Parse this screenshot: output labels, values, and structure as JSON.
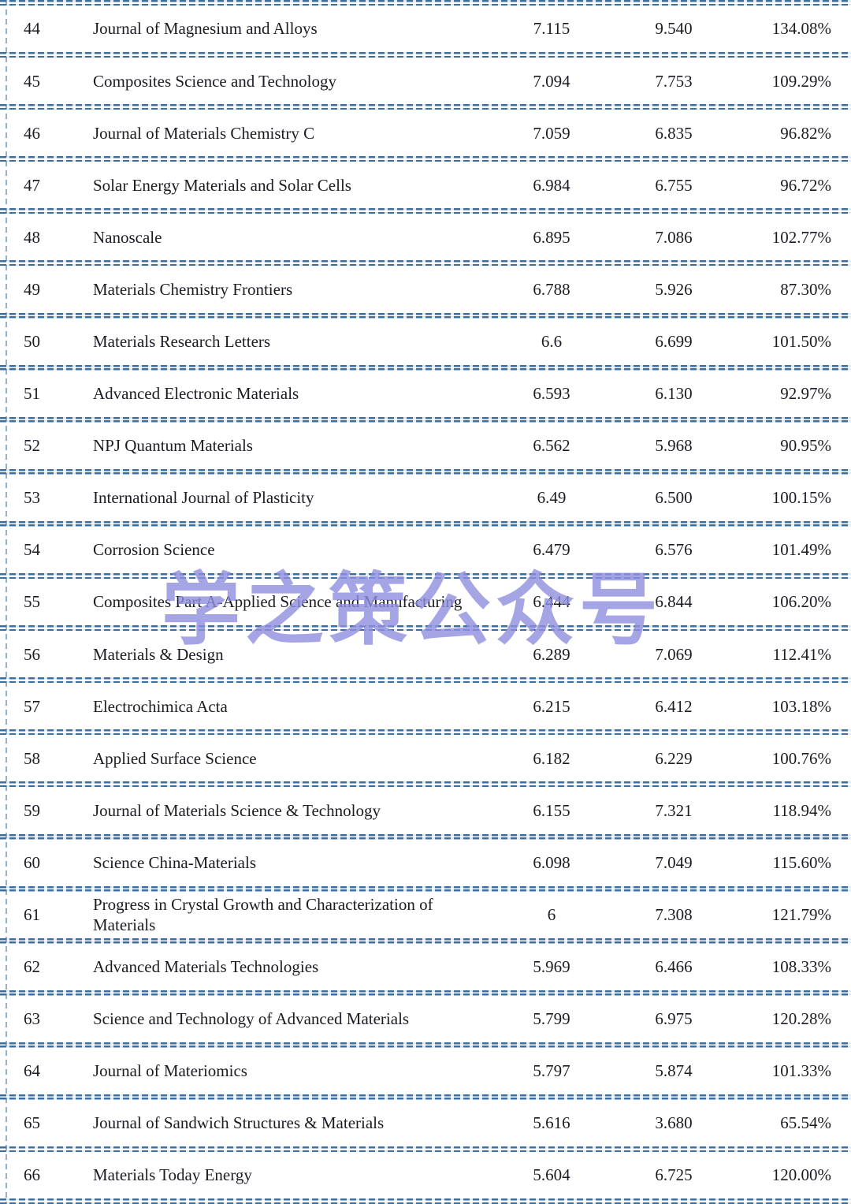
{
  "colors": {
    "separator": "#3c6e9f",
    "text": "#1b1b24",
    "watermark": "#8f8fe0"
  },
  "watermark": {
    "text": "学之策公众号"
  },
  "table": {
    "rows": [
      {
        "rank": "44",
        "name": "Journal of Magnesium and Alloys",
        "value1": "7.115",
        "value2": "9.540",
        "percent": "134.08%"
      },
      {
        "rank": "45",
        "name": "Composites Science and Technology",
        "value1": "7.094",
        "value2": "7.753",
        "percent": "109.29%"
      },
      {
        "rank": "46",
        "name": "Journal of Materials Chemistry C",
        "value1": "7.059",
        "value2": "6.835",
        "percent": "96.82%"
      },
      {
        "rank": "47",
        "name": "Solar Energy Materials and Solar Cells",
        "value1": "6.984",
        "value2": "6.755",
        "percent": "96.72%"
      },
      {
        "rank": "48",
        "name": "Nanoscale",
        "value1": "6.895",
        "value2": "7.086",
        "percent": "102.77%"
      },
      {
        "rank": "49",
        "name": "Materials Chemistry Frontiers",
        "value1": "6.788",
        "value2": "5.926",
        "percent": "87.30%"
      },
      {
        "rank": "50",
        "name": "Materials Research Letters",
        "value1": "6.6",
        "value2": "6.699",
        "percent": "101.50%"
      },
      {
        "rank": "51",
        "name": "Advanced Electronic Materials",
        "value1": "6.593",
        "value2": "6.130",
        "percent": "92.97%"
      },
      {
        "rank": "52",
        "name": "NPJ Quantum Materials",
        "value1": "6.562",
        "value2": "5.968",
        "percent": "90.95%"
      },
      {
        "rank": "53",
        "name": "International Journal of Plasticity",
        "value1": "6.49",
        "value2": "6.500",
        "percent": "100.15%"
      },
      {
        "rank": "54",
        "name": "Corrosion Science",
        "value1": "6.479",
        "value2": "6.576",
        "percent": "101.49%"
      },
      {
        "rank": "55",
        "name": "Composites Part A-Applied Science and Manufacturing",
        "value1": "6.444",
        "value2": "6.844",
        "percent": "106.20%"
      },
      {
        "rank": "56",
        "name": "Materials & Design",
        "value1": "6.289",
        "value2": "7.069",
        "percent": "112.41%"
      },
      {
        "rank": "57",
        "name": "Electrochimica Acta",
        "value1": "6.215",
        "value2": "6.412",
        "percent": "103.18%"
      },
      {
        "rank": "58",
        "name": "Applied Surface Science",
        "value1": "6.182",
        "value2": "6.229",
        "percent": "100.76%"
      },
      {
        "rank": "59",
        "name": "Journal of Materials Science & Technology",
        "value1": "6.155",
        "value2": "7.321",
        "percent": "118.94%"
      },
      {
        "rank": "60",
        "name": "Science China-Materials",
        "value1": "6.098",
        "value2": "7.049",
        "percent": "115.60%"
      },
      {
        "rank": "61",
        "name": "Progress in Crystal Growth and Characterization of Materials",
        "value1": "6",
        "value2": "7.308",
        "percent": "121.79%"
      },
      {
        "rank": "62",
        "name": "Advanced Materials Technologies",
        "value1": "5.969",
        "value2": "6.466",
        "percent": "108.33%"
      },
      {
        "rank": "63",
        "name": "Science and Technology of Advanced Materials",
        "value1": "5.799",
        "value2": "6.975",
        "percent": "120.28%"
      },
      {
        "rank": "64",
        "name": "Journal of Materiomics",
        "value1": "5.797",
        "value2": "5.874",
        "percent": "101.33%"
      },
      {
        "rank": "65",
        "name": "Journal of Sandwich Structures & Materials",
        "value1": "5.616",
        "value2": "3.680",
        "percent": "65.54%"
      },
      {
        "rank": "66",
        "name": "Materials Today Energy",
        "value1": "5.604",
        "value2": "6.725",
        "percent": "120.00%"
      }
    ]
  }
}
